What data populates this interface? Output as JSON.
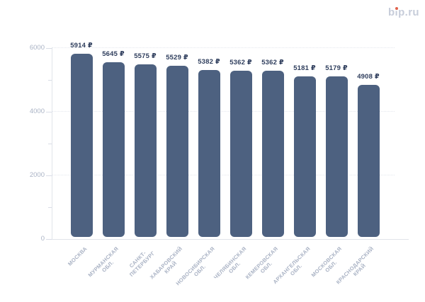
{
  "header": {
    "logo": {
      "text": "bip.ru",
      "color": "#c7cdda",
      "dot_color": "#e0614b"
    }
  },
  "chart_data": {
    "type": "bar",
    "title": "",
    "xlabel": "",
    "ylabel": "",
    "categories": [
      "МОСКВА",
      "МУРМАНСКАЯ ОБЛ.",
      "САНКТ-ПЕТЕРБУРГ",
      "ХАБАРОВСКИЙ КРАЙ",
      "НОВОСИБИРСКАЯ ОБЛ.",
      "ЧЕЛЯБИНСКАЯ ОБЛ.",
      "КЕМЕРОВСКАЯ ОБЛ.",
      "АРХАНГЕЛЬСКАЯ ОБЛ.",
      "МОСКОВСКАЯ ОБЛ.",
      "КРАСНОДАРСКИЙ КРАЙ"
    ],
    "category_lines": [
      [
        "МОСКВА"
      ],
      [
        "МУРМАНСКАЯ",
        "ОБЛ."
      ],
      [
        "САНКТ-",
        "ПЕТЕРБУРГ"
      ],
      [
        "ХАБАРОВСКИЙ",
        "КРАЙ"
      ],
      [
        "НОВОСИБИРСКАЯ",
        "ОБЛ."
      ],
      [
        "ЧЕЛЯБИНСКАЯ",
        "ОБЛ."
      ],
      [
        "КЕМЕРОВСКАЯ",
        "ОБЛ."
      ],
      [
        "АРХАНГЕЛЬСКАЯ",
        "ОБЛ."
      ],
      [
        "МОСКОВСКАЯ",
        "ОБЛ."
      ],
      [
        "КРАСНОДАРСКИЙ",
        "КРАЙ"
      ]
    ],
    "values": [
      5914,
      5645,
      5575,
      5529,
      5382,
      5362,
      5362,
      5181,
      5179,
      4908
    ],
    "value_suffix": " ₽",
    "value_labels": [
      "5914 ₽",
      "5645 ₽",
      "5575 ₽",
      "5529 ₽",
      "5382 ₽",
      "5362 ₽",
      "5362 ₽",
      "5181 ₽",
      "5179 ₽",
      "4908 ₽"
    ],
    "ylim": [
      0,
      6000
    ],
    "y_ticks": [
      0,
      2000,
      4000,
      6000
    ],
    "y_tick_labels": [
      "0",
      "2000",
      "4000",
      "6000"
    ],
    "y_minor_ticks": [
      1000,
      3000,
      5000
    ],
    "grid": "horizontal dotted at major ticks",
    "legend": "none",
    "x_label_rotation_deg": 45,
    "colors": {
      "bar": "#4d6180",
      "value_label": "#2e3d5c",
      "axis_text": "#a9b2c4",
      "y_axis_text": "#aab3c5",
      "gridline": "#e4e7ed",
      "axis_line": "#e0e4ea",
      "tick": "#d9dde6",
      "background": "#ffffff"
    }
  }
}
